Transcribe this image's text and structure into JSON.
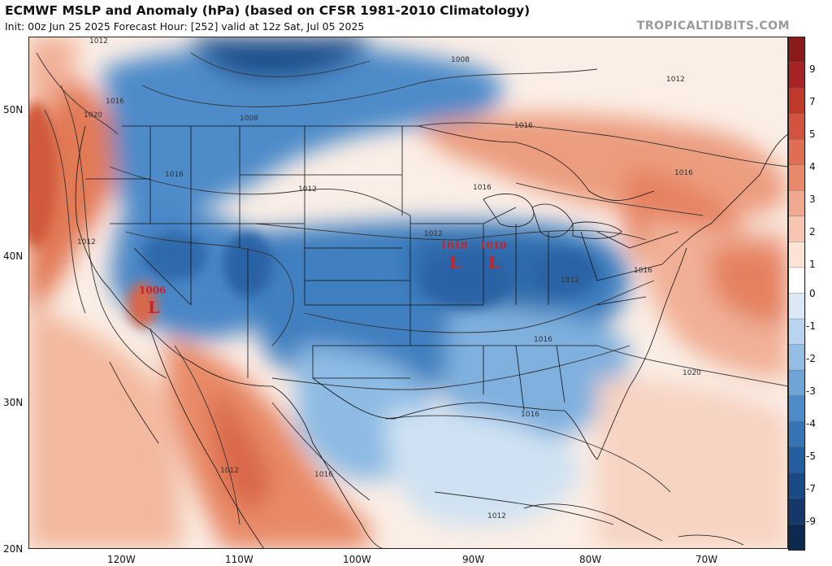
{
  "header": {
    "title": "ECMWF MSLP and Anomaly (hPa) (based on CFSR 1981-2010 Climatology)",
    "subtitle": "Init: 00z Jun 25 2025   Forecast Hour: [252]   valid at 12z Sat, Jul 05 2025",
    "brand": "TROPICALTIDBITS.COM"
  },
  "axes": {
    "lat_labels": [
      "50N",
      "40N",
      "30N",
      "20N"
    ],
    "lon_labels": [
      "120W",
      "110W",
      "100W",
      "90W",
      "80W",
      "70W"
    ]
  },
  "colorbar": {
    "tick_labels": [
      "9",
      "7",
      "5",
      "4",
      "3",
      "2",
      "1",
      "0",
      "-1",
      "-2",
      "-3",
      "-4",
      "-5",
      "-7",
      "-9"
    ]
  },
  "lows": [
    {
      "pressure": "1006",
      "symbol": "L"
    },
    {
      "pressure": "1010",
      "symbol": "L"
    },
    {
      "pressure": "1010",
      "symbol": "L"
    }
  ],
  "isobar_labels": [
    "1012",
    "1016",
    "1020",
    "1008",
    "1012",
    "1016",
    "1012",
    "1016",
    "1012",
    "1016",
    "1012",
    "1016",
    "1016",
    "1020",
    "1016",
    "1012",
    "1016",
    "1012",
    "1016",
    "1008",
    "1012"
  ],
  "colors": {
    "anomaly_neg_strong": "#1f4e8a",
    "anomaly_neg": "#3f7fc0",
    "anomaly_neg_weak": "#9fc5e8",
    "neutral": "#ffffff",
    "anomaly_pos_weak": "#f4c0a8",
    "anomaly_pos": "#e58160",
    "anomaly_pos_strong": "#c0392b",
    "low_marker": "#cc2222"
  }
}
